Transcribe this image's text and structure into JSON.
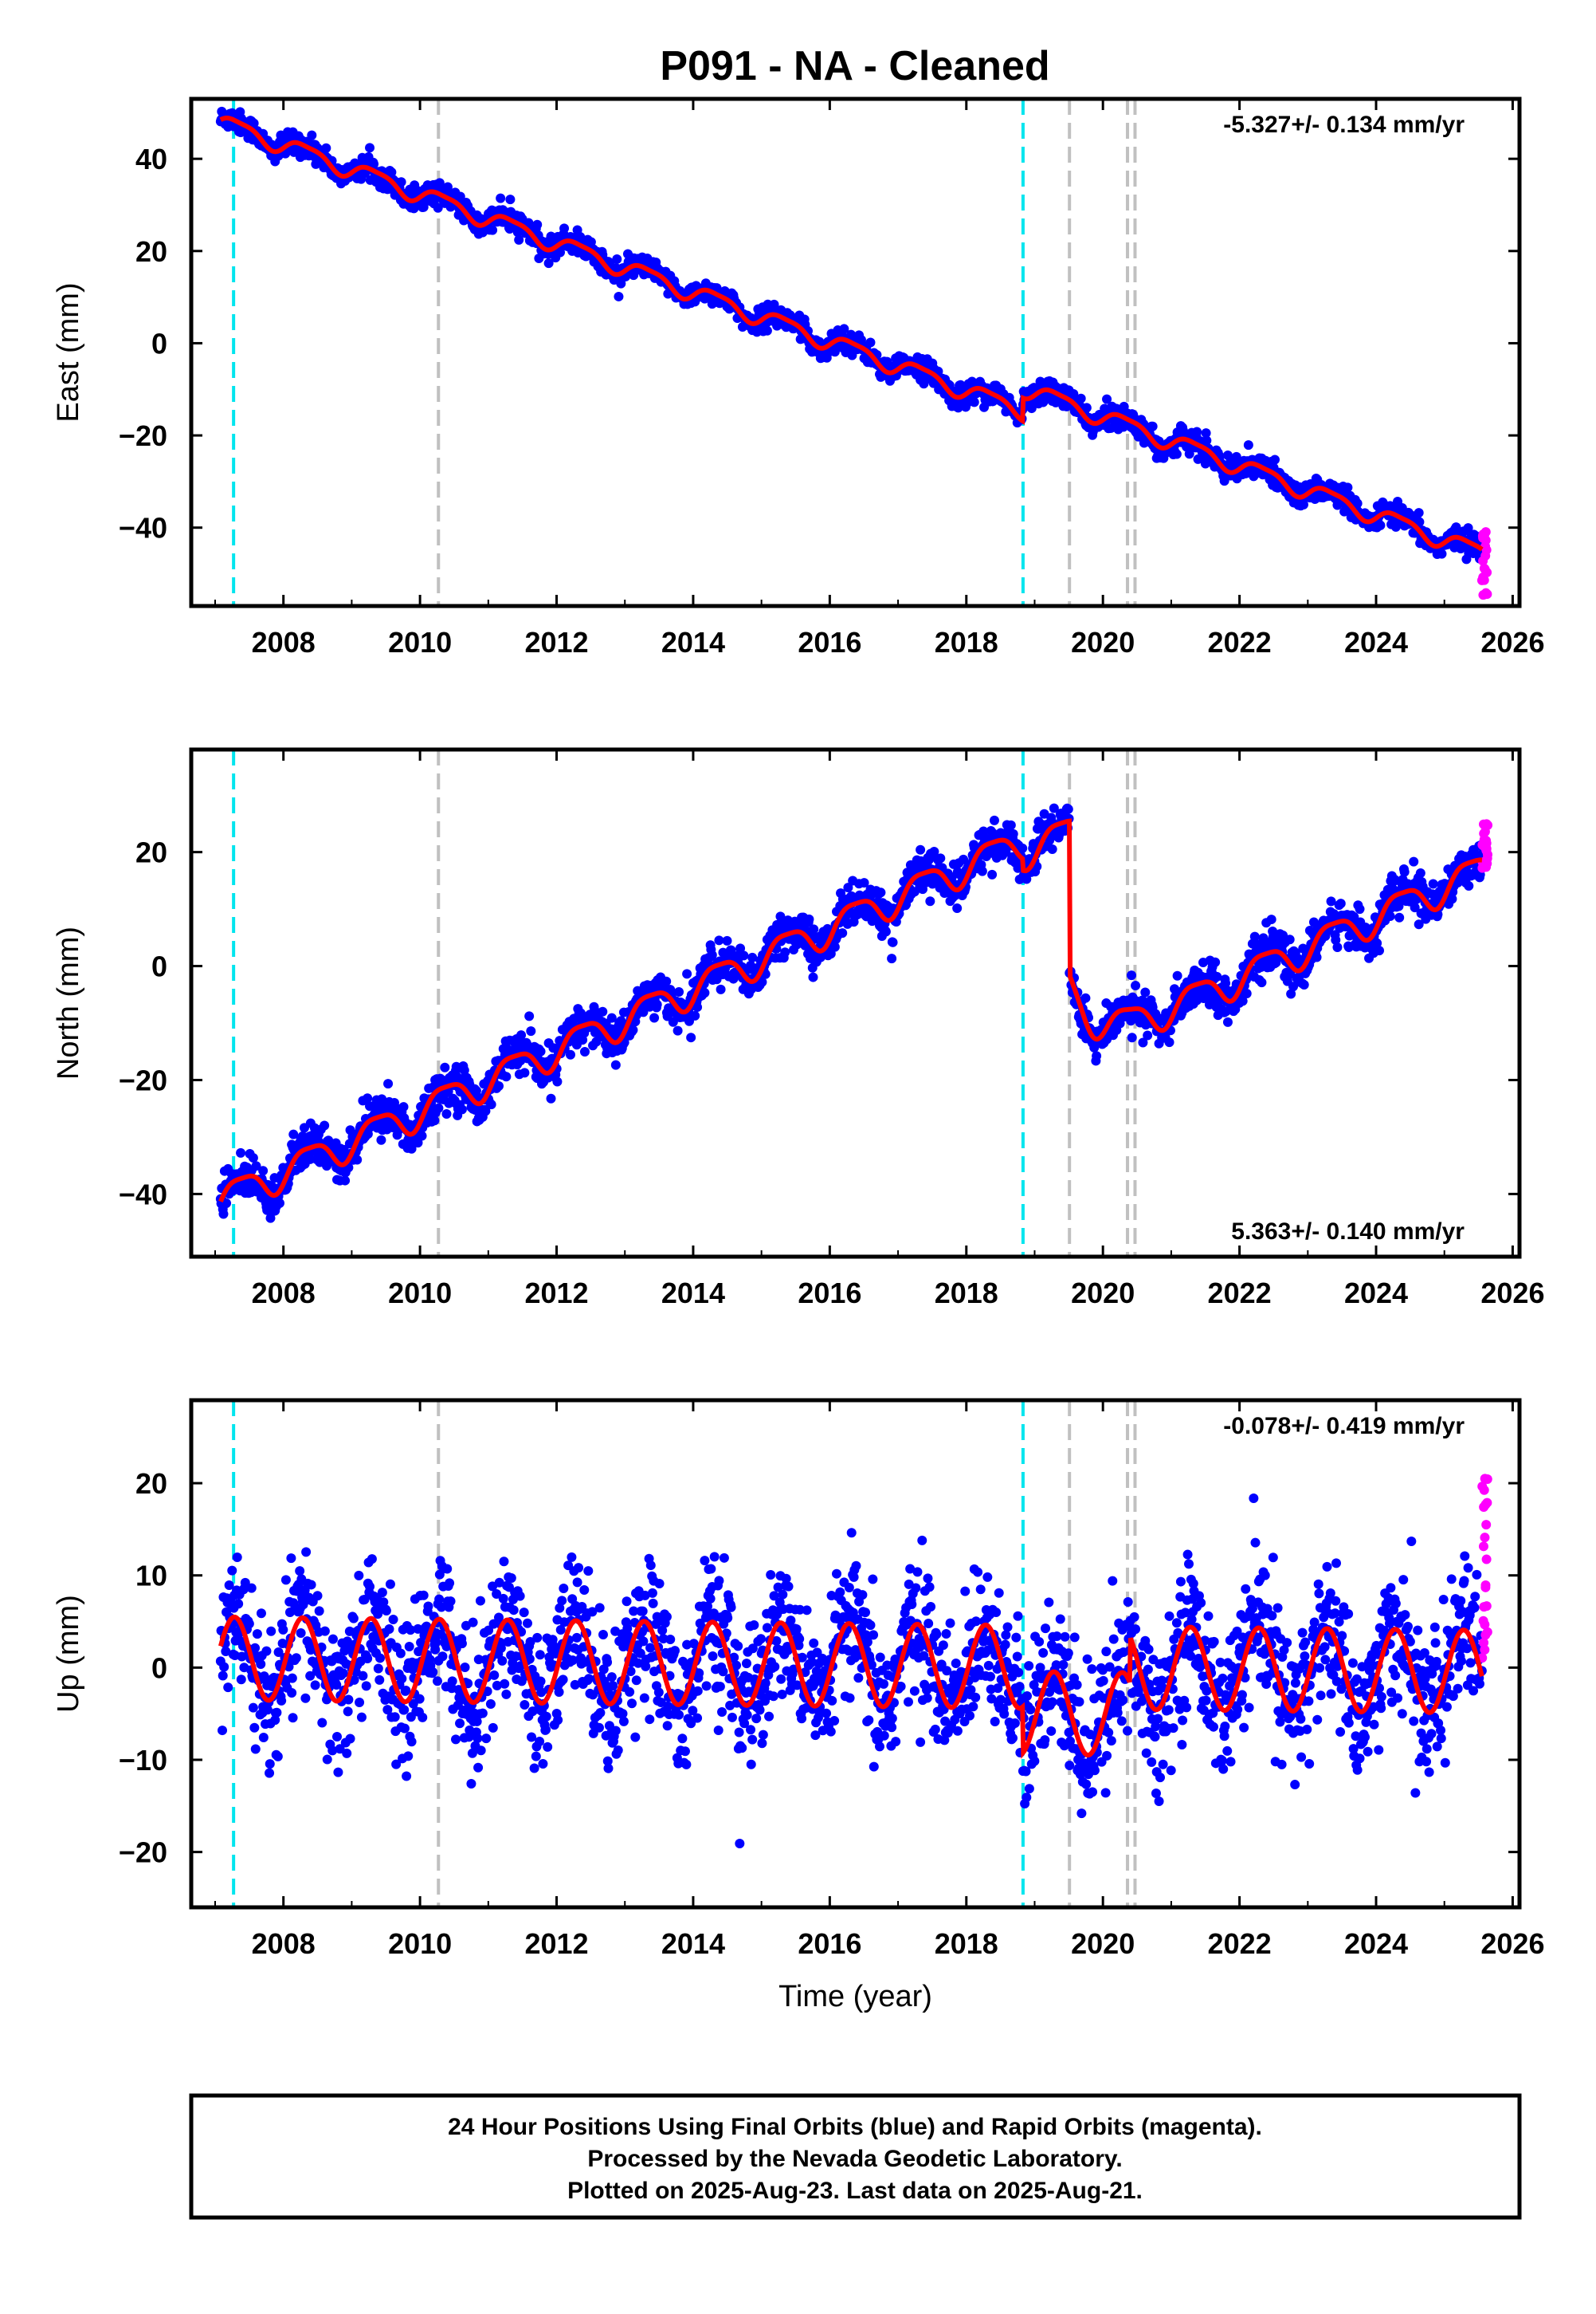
{
  "title": "P091  - NA - Cleaned",
  "footer": {
    "line1": "24 Hour Positions Using Final Orbits (blue) and Rapid Orbits (magenta).",
    "line2": "Processed by the Nevada Geodetic Laboratory.",
    "line3": "Plotted on 2025-Aug-23. Last data on 2025-Aug-21."
  },
  "colors": {
    "final": "#0000ff",
    "rapid": "#ff00ff",
    "model": "#ff0000",
    "equipment_change": "#00e5ee",
    "earthquake": "#c0c0c0",
    "frame": "#000000"
  },
  "chart_data": [
    {
      "type": "scatter",
      "panel": "east",
      "ylabel": "East (mm)",
      "xlabel": "",
      "xlim": [
        2006.65,
        2026.1
      ],
      "ylim": [
        -57,
        53
      ],
      "xticks": [
        2008,
        2010,
        2012,
        2014,
        2016,
        2018,
        2020,
        2022,
        2024,
        2026
      ],
      "xtick_labels": [
        "2008",
        "2010",
        "2012",
        "2014",
        "2016",
        "2018",
        "2020",
        "2022",
        "2024",
        "2026"
      ],
      "yticks": [
        -40,
        -20,
        0,
        20,
        40
      ],
      "ytick_labels": [
        "−40",
        "−20",
        "0",
        "20",
        "40"
      ],
      "rate_label": "-5.327+/- 0.134 mm/yr",
      "rate_position": "top-right",
      "grid": false,
      "legend": "none",
      "data_start": 2007.08,
      "data_end": 2025.55,
      "rapid_start": 2025.55,
      "rapid_end": 2025.64,
      "equipment_changes": [
        2007.27,
        2018.83
      ],
      "earthquakes": [
        2010.27,
        2019.51,
        2020.36,
        2020.47
      ],
      "model": {
        "y_at_start": 48,
        "rate_mm_per_yr": -5.33,
        "offsets": [
          {
            "epoch": 2018.83,
            "mm": 5
          }
        ],
        "annual_amplitude": 1.8,
        "annual_phase": 0,
        "semiannual_amplitude": 0.5,
        "semiannual_phase": 1.2
      },
      "scatter_sigma": 1.2,
      "rapid_y_range": [
        -55,
        -40
      ]
    },
    {
      "type": "scatter",
      "panel": "north",
      "ylabel": "North (mm)",
      "xlabel": "",
      "xlim": [
        2006.65,
        2026.1
      ],
      "ylim": [
        -51,
        38
      ],
      "xticks": [
        2008,
        2010,
        2012,
        2014,
        2016,
        2018,
        2020,
        2022,
        2024,
        2026
      ],
      "xtick_labels": [
        "2008",
        "2010",
        "2012",
        "2014",
        "2016",
        "2018",
        "2020",
        "2022",
        "2024",
        "2026"
      ],
      "yticks": [
        -40,
        -20,
        0,
        20
      ],
      "ytick_labels": [
        "−40",
        "−20",
        "0",
        "20"
      ],
      "rate_label": "5.363+/- 0.140 mm/yr",
      "rate_position": "bottom-right",
      "grid": false,
      "legend": "none",
      "data_start": 2007.08,
      "data_end": 2025.55,
      "rapid_start": 2025.55,
      "rapid_end": 2025.64,
      "equipment_changes": [
        2007.27,
        2018.83
      ],
      "earthquakes": [
        2010.27,
        2019.51,
        2020.36,
        2020.47
      ],
      "model": {
        "y_at_start": -41,
        "rate_mm_per_yr": 5.36,
        "offsets": [
          {
            "epoch": 2018.83,
            "mm": -2
          },
          {
            "epoch": 2019.51,
            "mm": -27
          }
        ],
        "annual_amplitude": 2.8,
        "annual_phase": -0.3,
        "semiannual_amplitude": 0.7,
        "semiannual_phase": 0.8,
        "postseismic": {
          "epoch": 2019.51,
          "amplitude_mm": -12,
          "tau_yr": 0.35
        }
      },
      "scatter_sigma": 1.8,
      "rapid_y_range": [
        17,
        25
      ]
    },
    {
      "type": "scatter",
      "panel": "up",
      "ylabel": "Up (mm)",
      "xlabel": "Time (year)",
      "xlim": [
        2006.65,
        2026.1
      ],
      "ylim": [
        -26,
        29
      ],
      "xticks": [
        2008,
        2010,
        2012,
        2014,
        2016,
        2018,
        2020,
        2022,
        2024,
        2026
      ],
      "xtick_labels": [
        "2008",
        "2010",
        "2012",
        "2014",
        "2016",
        "2018",
        "2020",
        "2022",
        "2024",
        "2026"
      ],
      "yticks": [
        -20,
        -10,
        0,
        10,
        20
      ],
      "ytick_labels": [
        "−20",
        "−10",
        "0",
        "10",
        "20"
      ],
      "rate_label": "-0.078+/- 0.419 mm/yr",
      "rate_position": "top-right",
      "grid": false,
      "legend": "none",
      "data_start": 2007.08,
      "data_end": 2025.55,
      "rapid_start": 2025.55,
      "rapid_end": 2025.64,
      "equipment_changes": [
        2007.27,
        2018.83
      ],
      "earthquakes": [
        2010.27,
        2019.51,
        2020.36,
        2020.47
      ],
      "model": {
        "y_at_start": 1,
        "rate_mm_per_yr": -0.078,
        "offsets": [
          {
            "epoch": 2018.83,
            "mm": -5
          },
          {
            "epoch": 2020.4,
            "mm": 5
          }
        ],
        "annual_amplitude": 4.5,
        "annual_phase": 0.3,
        "semiannual_amplitude": 0,
        "semiannual_phase": 0
      },
      "scatter_sigma": 3.8,
      "rapid_y_range": [
        -3,
        21
      ]
    }
  ]
}
